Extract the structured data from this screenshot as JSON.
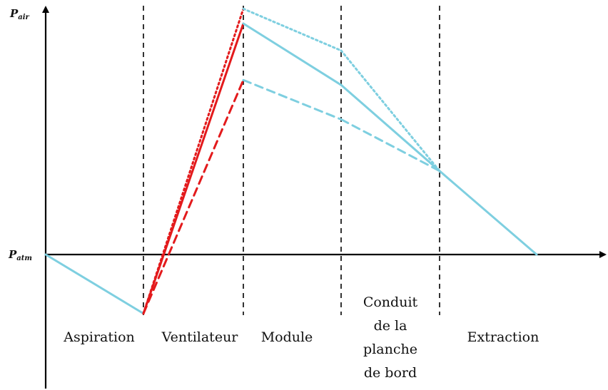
{
  "chart_data": {
    "type": "line",
    "y_axis_labels": [
      {
        "main": "P",
        "sub": "air"
      },
      {
        "main": "P",
        "sub": "atm"
      }
    ],
    "stages": [
      {
        "lines": [
          "Aspiration"
        ]
      },
      {
        "lines": [
          "Ventilateur"
        ]
      },
      {
        "lines": [
          "Module"
        ]
      },
      {
        "lines": [
          "Conduit",
          "de la",
          "planche",
          "de bord"
        ]
      },
      {
        "lines": [
          "Extraction"
        ]
      }
    ],
    "x": [
      0,
      1,
      2,
      3,
      4,
      5
    ],
    "ylim": [
      -0.26,
      1.08
    ],
    "series": [
      {
        "style": "solid",
        "color_up": "#e31a1c",
        "color_down": "#7ecfe0",
        "values": [
          0,
          -0.24,
          0.94,
          0.69,
          0.34,
          0
        ]
      },
      {
        "style": "dotted",
        "color_up": "#e31a1c",
        "color_down": "#7ecfe0",
        "values": [
          null,
          -0.24,
          1.0,
          0.83,
          0.34,
          null
        ]
      },
      {
        "style": "dashed",
        "color_up": "#e31a1c",
        "color_down": "#7ecfe0",
        "values": [
          null,
          -0.24,
          0.71,
          0.55,
          0.34,
          null
        ]
      }
    ],
    "colors": {
      "axis": "#000000",
      "divider": "#333333",
      "rise": "#e31a1c",
      "fall": "#7ecfe0"
    }
  }
}
